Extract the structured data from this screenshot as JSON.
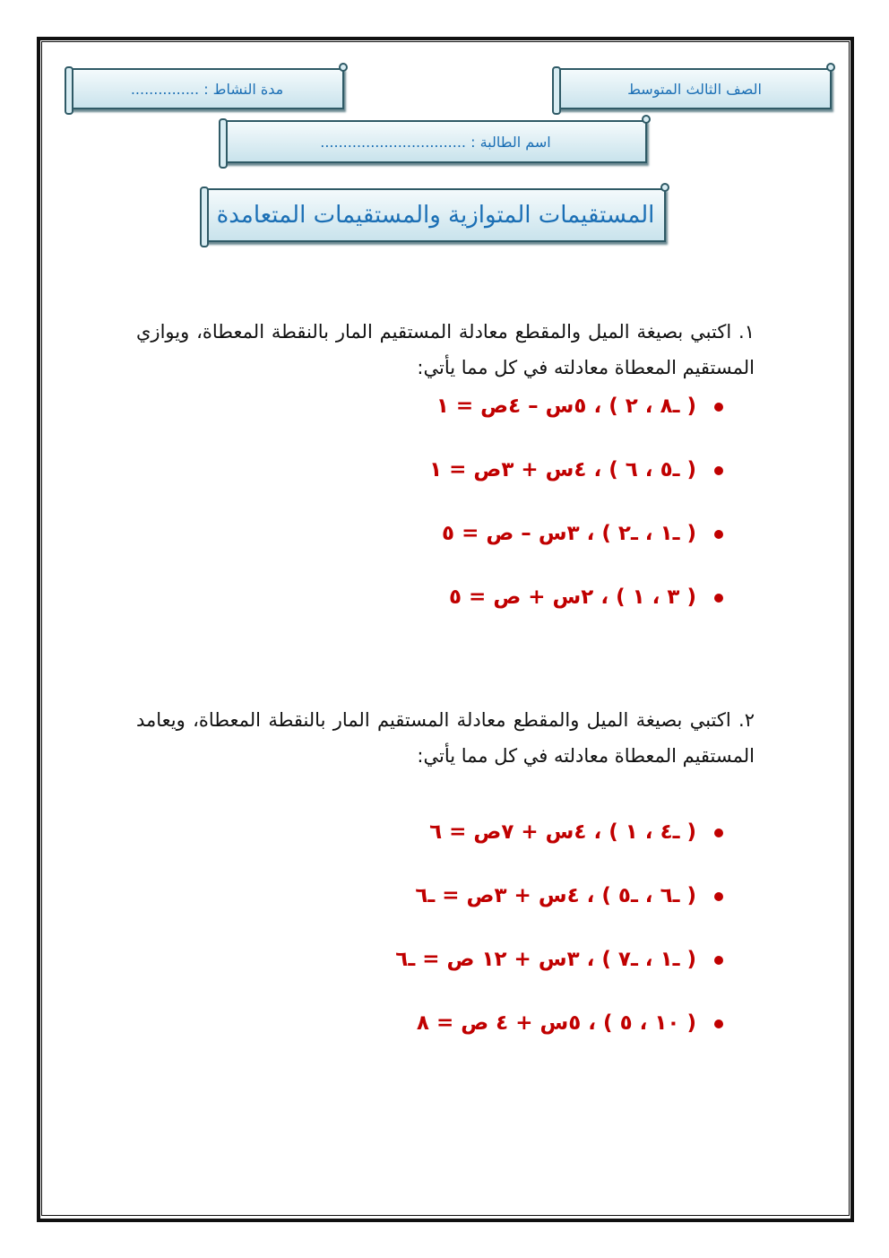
{
  "header": {
    "grade": "الصف الثالث المتوسط",
    "duration": "مدة النشاط : ...............",
    "student_name": "اسم الطالبة : ................................",
    "title": "المستقيمات المتوازية والمستقيمات المتعامدة"
  },
  "question1": {
    "text": "١. اكتبي بصيغة الميل والمقطع معادلة المستقيم المار بالنقطة المعطاة، ويوازي المستقيم المعطاة معادلته في كل مما يأتي:",
    "items": [
      "( ـ٨ ، ٢ ) ، ٥س – ٤ص = ١",
      "( ـ٥ ، ٦ ) ، ٤س + ٣ص = ١",
      "( ـ١ ، ـ٢ ) ، ٣س – ص = ٥",
      "( ٣ ، ١ ) ، ٢س + ص = ٥"
    ]
  },
  "question2": {
    "text": "٢. اكتبي بصيغة الميل والمقطع معادلة المستقيم المار بالنقطة المعطاة، ويعامد المستقيم المعطاة معادلته في كل مما يأتي:",
    "items": [
      "( ـ٤ ، ١ ) ، ٤س + ٧ص = ٦",
      "( ـ٦ ، ـ٥ ) ، ٤س + ٣ص = ـ٦",
      "( ـ١ ، ـ٧ ) ، ٣س + ١٢ ص = ـ٦",
      "( ١٠ ، ٥ ) ، ٥س + ٤ ص = ٨"
    ]
  }
}
